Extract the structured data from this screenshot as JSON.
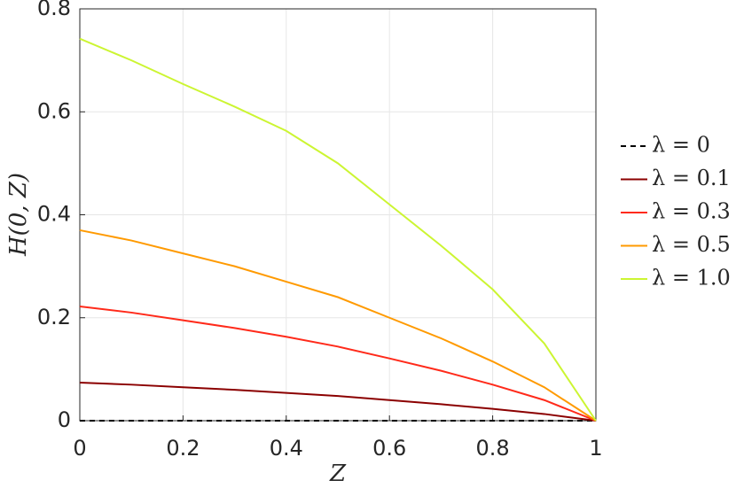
{
  "chart_data": {
    "type": "line",
    "x_label": "Z",
    "y_label": "H(0, Z)",
    "x": [
      0,
      0.1,
      0.2,
      0.3,
      0.4,
      0.5,
      0.6,
      0.7,
      0.8,
      0.9,
      1
    ],
    "series": [
      {
        "name": "λ = 0",
        "color": "#000000",
        "dash": true,
        "values": [
          0,
          0,
          0,
          0,
          0,
          0,
          0,
          0,
          0,
          0,
          0
        ]
      },
      {
        "name": "λ = 0.1",
        "color": "#8b0000",
        "values": [
          0.074,
          0.07,
          0.065,
          0.06,
          0.054,
          0.048,
          0.04,
          0.032,
          0.023,
          0.013,
          0
        ]
      },
      {
        "name": "λ = 0.3",
        "color": "#ff2a1a",
        "values": [
          0.222,
          0.21,
          0.195,
          0.18,
          0.163,
          0.144,
          0.121,
          0.097,
          0.07,
          0.04,
          0
        ]
      },
      {
        "name": "λ = 0.5",
        "color": "#ff9a00",
        "values": [
          0.37,
          0.35,
          0.325,
          0.3,
          0.27,
          0.24,
          0.2,
          0.16,
          0.115,
          0.065,
          0
        ]
      },
      {
        "name": "λ = 1.0",
        "color": "#ccf532",
        "values": [
          0.742,
          0.7,
          0.654,
          0.61,
          0.563,
          0.5,
          0.42,
          0.34,
          0.255,
          0.15,
          0
        ]
      }
    ],
    "xlim": [
      0,
      1
    ],
    "xticks": [
      0,
      0.2,
      0.4,
      0.6,
      0.8,
      1
    ],
    "ylim": [
      0,
      0.8
    ],
    "yticks": [
      0,
      0.2,
      0.4,
      0.6,
      0.8
    ],
    "grid": true,
    "legend": "outside-right"
  }
}
